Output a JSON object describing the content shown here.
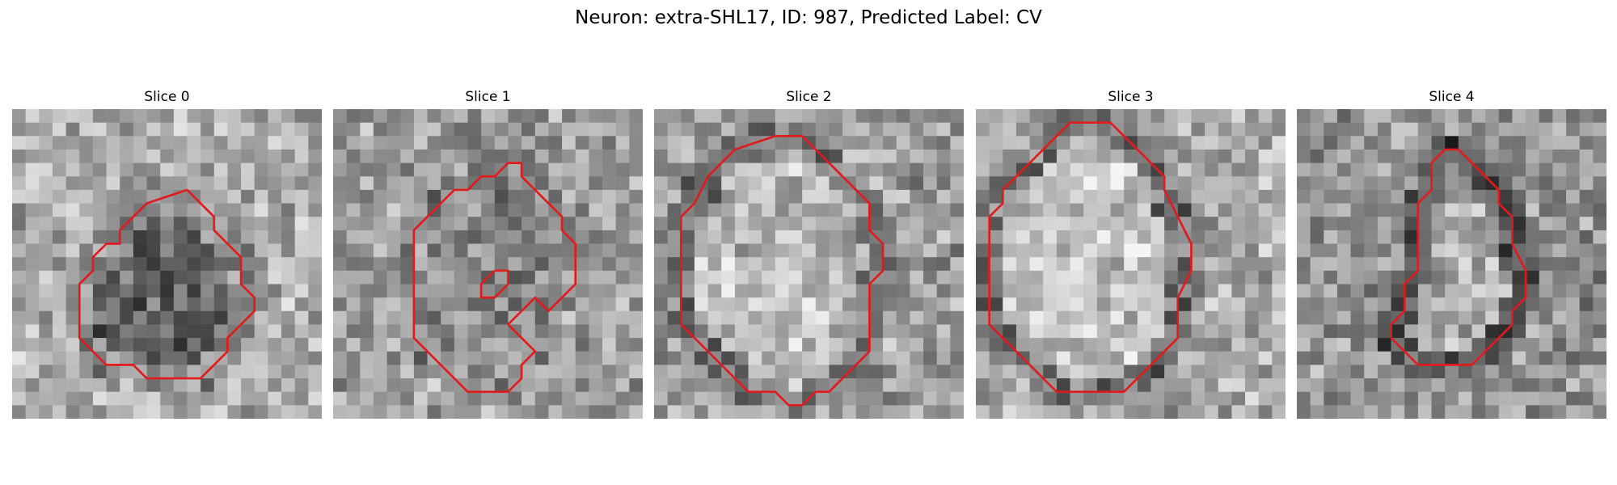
{
  "figure": {
    "title": "Neuron: extra-SHL17, ID: 987, Predicted Label: CV"
  },
  "colors": {
    "contour": "#e31a1c",
    "background": "#ffffff"
  },
  "panels": [
    {
      "title": "Slice 0",
      "contours": [
        [
          [
            13,
            6
          ],
          [
            10,
            7
          ],
          [
            8,
            9
          ],
          [
            8,
            10
          ],
          [
            7,
            10
          ],
          [
            6,
            11
          ],
          [
            6,
            12
          ],
          [
            5,
            13
          ],
          [
            5,
            14
          ],
          [
            5,
            16
          ],
          [
            5,
            17
          ],
          [
            6,
            18
          ],
          [
            7,
            19
          ],
          [
            8,
            19
          ],
          [
            9,
            19
          ],
          [
            10,
            20
          ],
          [
            12,
            20
          ],
          [
            14,
            20
          ],
          [
            15,
            19
          ],
          [
            16,
            18
          ],
          [
            16,
            17
          ],
          [
            17,
            16
          ],
          [
            18,
            15
          ],
          [
            18,
            14
          ],
          [
            17,
            13
          ],
          [
            17,
            12
          ],
          [
            17,
            11
          ],
          [
            16,
            10
          ],
          [
            15,
            9
          ],
          [
            15,
            8
          ],
          [
            14,
            7
          ],
          [
            13,
            6
          ]
        ]
      ]
    },
    {
      "title": "Slice 1",
      "contours": [
        [
          [
            14,
            4
          ],
          [
            13,
            4
          ],
          [
            12,
            5
          ],
          [
            11,
            5
          ],
          [
            10,
            6
          ],
          [
            9,
            6
          ],
          [
            7,
            8
          ],
          [
            6,
            9
          ],
          [
            6,
            10
          ],
          [
            6,
            13
          ],
          [
            6,
            15
          ],
          [
            6,
            17
          ],
          [
            7,
            18
          ],
          [
            8,
            19
          ],
          [
            9,
            20
          ],
          [
            10,
            21
          ],
          [
            12,
            21
          ],
          [
            13,
            21
          ],
          [
            14,
            20
          ],
          [
            14,
            19
          ],
          [
            15,
            18
          ],
          [
            14,
            17
          ],
          [
            13,
            16
          ],
          [
            14,
            15
          ],
          [
            15,
            14
          ],
          [
            16,
            15
          ],
          [
            17,
            14
          ],
          [
            18,
            13
          ],
          [
            18,
            12
          ],
          [
            18,
            10
          ],
          [
            17,
            9
          ],
          [
            17,
            8
          ],
          [
            16,
            7
          ],
          [
            15,
            6
          ],
          [
            14,
            5
          ],
          [
            14,
            4
          ]
        ],
        [
          [
            12,
            12
          ],
          [
            11,
            13
          ],
          [
            11,
            14
          ],
          [
            12,
            14
          ],
          [
            13,
            13
          ],
          [
            13,
            12
          ],
          [
            12,
            12
          ]
        ]
      ]
    },
    {
      "title": "Slice 2",
      "contours": [
        [
          [
            9,
            2
          ],
          [
            6,
            3
          ],
          [
            4,
            5
          ],
          [
            3,
            7
          ],
          [
            2,
            8
          ],
          [
            2,
            10
          ],
          [
            2,
            14
          ],
          [
            2,
            16
          ],
          [
            3,
            17
          ],
          [
            4,
            18
          ],
          [
            5,
            19
          ],
          [
            6,
            20
          ],
          [
            7,
            21
          ],
          [
            9,
            21
          ],
          [
            10,
            22
          ],
          [
            11,
            22
          ],
          [
            12,
            21
          ],
          [
            13,
            21
          ],
          [
            14,
            20
          ],
          [
            15,
            19
          ],
          [
            16,
            18
          ],
          [
            16,
            17
          ],
          [
            16,
            15
          ],
          [
            16,
            13
          ],
          [
            17,
            12
          ],
          [
            17,
            10
          ],
          [
            16,
            9
          ],
          [
            16,
            7
          ],
          [
            15,
            6
          ],
          [
            14,
            5
          ],
          [
            13,
            4
          ],
          [
            12,
            3
          ],
          [
            11,
            2
          ],
          [
            9,
            2
          ]
        ]
      ]
    },
    {
      "title": "Slice 3",
      "contours": [
        [
          [
            9,
            1
          ],
          [
            7,
            1
          ],
          [
            6,
            2
          ],
          [
            5,
            3
          ],
          [
            4,
            4
          ],
          [
            3,
            5
          ],
          [
            2,
            6
          ],
          [
            2,
            7
          ],
          [
            1,
            8
          ],
          [
            1,
            10
          ],
          [
            1,
            14
          ],
          [
            1,
            16
          ],
          [
            2,
            17
          ],
          [
            3,
            18
          ],
          [
            4,
            19
          ],
          [
            5,
            20
          ],
          [
            6,
            21
          ],
          [
            8,
            21
          ],
          [
            10,
            21
          ],
          [
            11,
            21
          ],
          [
            12,
            20
          ],
          [
            13,
            19
          ],
          [
            14,
            18
          ],
          [
            15,
            17
          ],
          [
            15,
            14
          ],
          [
            16,
            12
          ],
          [
            16,
            10
          ],
          [
            15,
            8
          ],
          [
            14,
            6
          ],
          [
            14,
            5
          ],
          [
            13,
            4
          ],
          [
            12,
            3
          ],
          [
            11,
            2
          ],
          [
            10,
            1
          ],
          [
            9,
            1
          ]
        ]
      ]
    },
    {
      "title": "Slice 4",
      "contours": [
        [
          [
            12,
            3
          ],
          [
            11,
            3
          ],
          [
            10,
            4
          ],
          [
            10,
            6
          ],
          [
            9,
            7
          ],
          [
            9,
            9
          ],
          [
            9,
            12
          ],
          [
            8,
            13
          ],
          [
            8,
            14
          ],
          [
            8,
            15
          ],
          [
            7,
            16
          ],
          [
            7,
            17
          ],
          [
            8,
            18
          ],
          [
            9,
            19
          ],
          [
            11,
            19
          ],
          [
            13,
            19
          ],
          [
            14,
            18
          ],
          [
            15,
            17
          ],
          [
            16,
            16
          ],
          [
            16,
            15
          ],
          [
            17,
            14
          ],
          [
            17,
            12
          ],
          [
            16,
            10
          ],
          [
            16,
            8
          ],
          [
            15,
            7
          ],
          [
            15,
            6
          ],
          [
            14,
            5
          ],
          [
            13,
            4
          ],
          [
            12,
            3
          ]
        ]
      ]
    }
  ]
}
